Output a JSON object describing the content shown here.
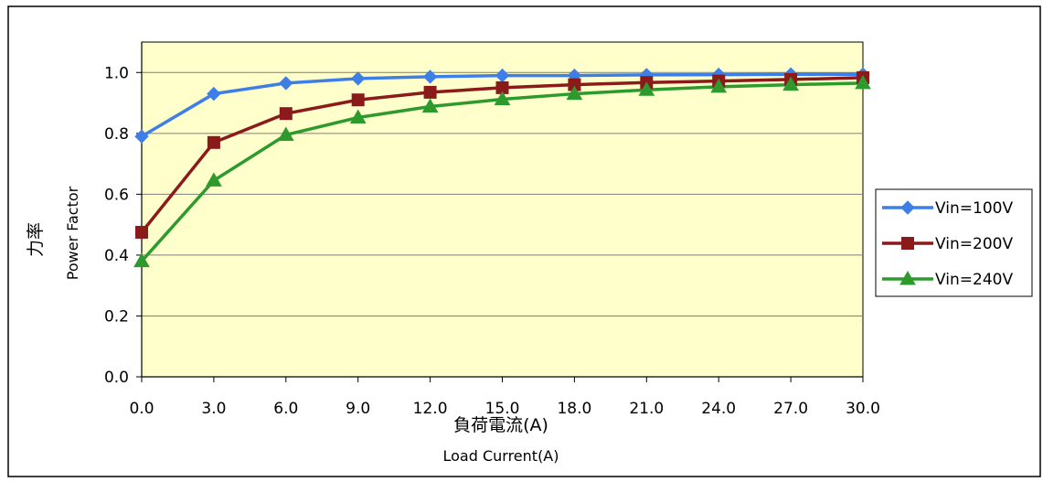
{
  "chart_data": {
    "type": "line",
    "x": [
      0.0,
      3.0,
      6.0,
      9.0,
      12.0,
      15.0,
      18.0,
      21.0,
      24.0,
      27.0,
      30.0
    ],
    "x_tick_labels": [
      "0.0",
      "3.0",
      "6.0",
      "9.0",
      "12.0",
      "15.0",
      "18.0",
      "21.0",
      "24.0",
      "27.0",
      "30.0"
    ],
    "y_tick_labels": [
      "0.0",
      "0.2",
      "0.4",
      "0.6",
      "0.8",
      "1.0"
    ],
    "xlim": [
      0,
      30
    ],
    "ylim": [
      0,
      1.1
    ],
    "xlabel_jp": "負荷電流(A)",
    "xlabel_en": "Load Current(A)",
    "ylabel_jp": "力率",
    "ylabel_en": "Power Factor",
    "grid": true,
    "legend_position": "right",
    "plot_background": "#ffffcc",
    "series": [
      {
        "name": "Vin=100V",
        "color": "#3d7fe6",
        "marker": "diamond",
        "values": [
          0.79,
          0.93,
          0.965,
          0.98,
          0.986,
          0.99,
          0.99,
          0.992,
          0.993,
          0.994,
          0.994
        ]
      },
      {
        "name": "Vin=200V",
        "color": "#8b1a1a",
        "marker": "square",
        "values": [
          0.475,
          0.77,
          0.865,
          0.91,
          0.935,
          0.95,
          0.96,
          0.967,
          0.972,
          0.977,
          0.983
        ]
      },
      {
        "name": "Vin=240V",
        "color": "#2e9a2e",
        "marker": "triangle",
        "values": [
          0.38,
          0.645,
          0.795,
          0.852,
          0.888,
          0.912,
          0.93,
          0.943,
          0.953,
          0.96,
          0.965
        ]
      }
    ]
  }
}
